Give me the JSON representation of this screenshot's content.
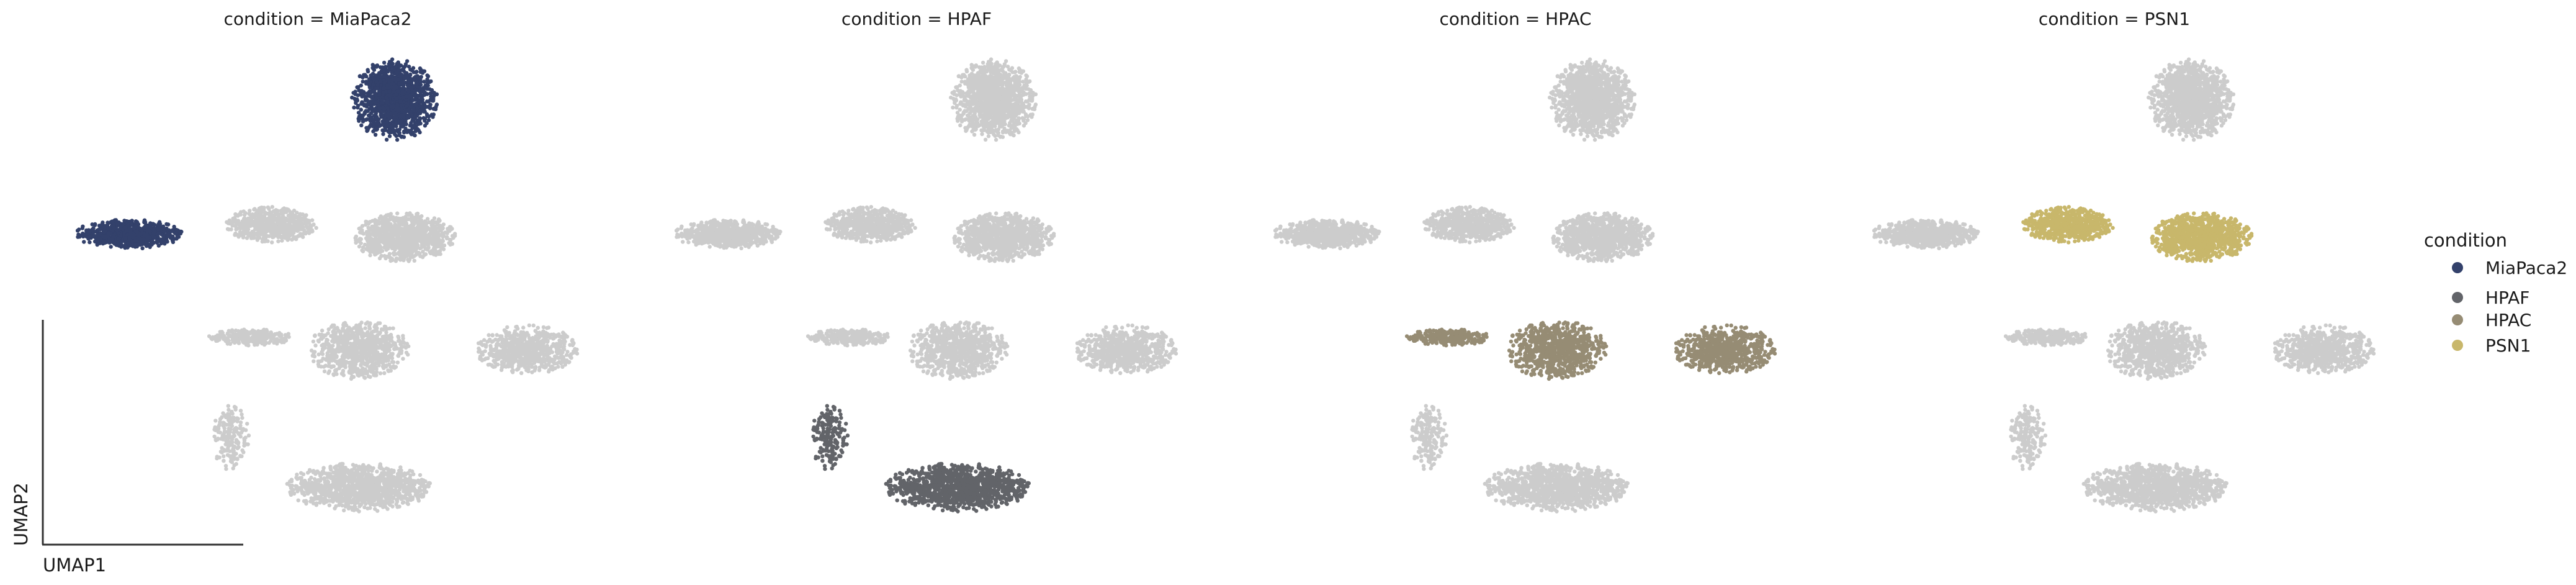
{
  "chart_data": {
    "type": "scatter",
    "xlabel": "UMAP1",
    "ylabel": "UMAP2",
    "background_color": "#cccccc",
    "panels": [
      {
        "title": "condition = MiaPaca2",
        "condition": "MiaPaca2"
      },
      {
        "title": "condition = HPAF",
        "condition": "HPAF"
      },
      {
        "title": "condition = HPAC",
        "condition": "HPAC"
      },
      {
        "title": "condition = PSN1",
        "condition": "PSN1"
      }
    ],
    "legend": {
      "title": "condition",
      "placement": "right",
      "entries": [
        {
          "label": "MiaPaca2",
          "color": "#33416b"
        },
        {
          "label": "HPAF",
          "color": "#626469"
        },
        {
          "label": "HPAC",
          "color": "#968c74"
        },
        {
          "label": "PSN1",
          "color": "#c8b76b"
        }
      ]
    },
    "clusters": [
      {
        "id": "top",
        "cx": 1.0,
        "cy": 8.6,
        "rx": 0.8,
        "ry": 1.25,
        "n": 1200,
        "condition": "MiaPaca2"
      },
      {
        "id": "left-far",
        "cx": -4.2,
        "cy": 4.3,
        "rx": 1.0,
        "ry": 0.45,
        "n": 700,
        "condition": "MiaPaca2"
      },
      {
        "id": "mid-left",
        "cx": -1.4,
        "cy": 4.6,
        "rx": 0.85,
        "ry": 0.55,
        "n": 650,
        "condition": "PSN1"
      },
      {
        "id": "mid-right",
        "cx": 1.2,
        "cy": 4.2,
        "rx": 0.95,
        "ry": 0.75,
        "n": 1000,
        "condition": "PSN1"
      },
      {
        "id": "left-arm",
        "cx": -1.8,
        "cy": 1.0,
        "rx": 0.8,
        "ry": 0.25,
        "n": 300,
        "condition": "HPAC"
      },
      {
        "id": "center",
        "cx": 0.3,
        "cy": 0.6,
        "rx": 0.95,
        "ry": 0.9,
        "n": 800,
        "condition": "HPAC"
      },
      {
        "id": "right",
        "cx": 3.6,
        "cy": 0.6,
        "rx": 0.95,
        "ry": 0.75,
        "n": 700,
        "condition": "HPAC"
      },
      {
        "id": "bottom-arm",
        "cx": -2.2,
        "cy": -2.2,
        "rx": 0.35,
        "ry": 1.0,
        "n": 180,
        "condition": "HPAF"
      },
      {
        "id": "bottom",
        "cx": 0.3,
        "cy": -3.8,
        "rx": 1.35,
        "ry": 0.75,
        "n": 1100,
        "condition": "HPAF"
      }
    ]
  }
}
